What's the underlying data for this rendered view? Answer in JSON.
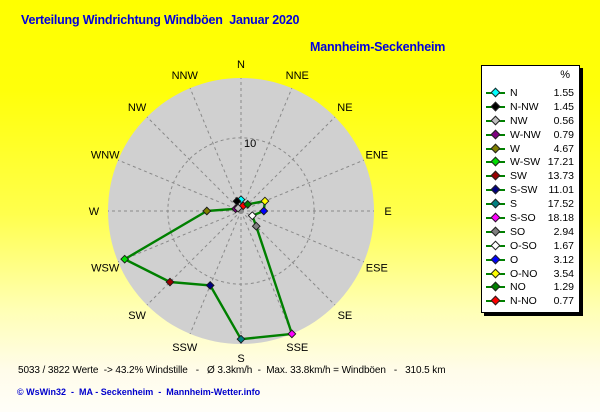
{
  "header": {
    "title": "Verteilung Windrichtung Windböen  Januar 2020",
    "subtitle": "Mannheim-Seckenheim"
  },
  "chart_data": {
    "type": "line",
    "subtype": "wind-rose-polar",
    "title": "Verteilung Windrichtung Windböen  Januar 2020",
    "subtitle": "Mannheim-Seckenheim",
    "unit": "%",
    "grid": "dashed",
    "outer_radius_value": 18.18,
    "radial_gridline_values": [
      10
    ],
    "radial_gridline_labels": [
      "10"
    ],
    "compass_labels": [
      "N",
      "NNE",
      "NE",
      "ENE",
      "E",
      "ESE",
      "SE",
      "SSE",
      "S",
      "SSW",
      "SW",
      "WSW",
      "W",
      "WNW",
      "NW",
      "NNW"
    ],
    "series": [
      {
        "name": "Windrichtung Windböen %",
        "line_color": "#008000",
        "points": [
          {
            "label": "N",
            "angle": 0,
            "value": 1.55,
            "color": "#00ffff"
          },
          {
            "label": "N-NW",
            "angle": 337.5,
            "value": 1.45,
            "color": "#000000"
          },
          {
            "label": "NW",
            "angle": 315,
            "value": 0.56,
            "color": "#c0c0c0"
          },
          {
            "label": "W-NW",
            "angle": 292.5,
            "value": 0.79,
            "color": "#800080"
          },
          {
            "label": "W",
            "angle": 270,
            "value": 4.67,
            "color": "#808000"
          },
          {
            "label": "W-SW",
            "angle": 247.5,
            "value": 17.21,
            "color": "#00dd00"
          },
          {
            "label": "SW",
            "angle": 225,
            "value": 13.73,
            "color": "#990000"
          },
          {
            "label": "S-SW",
            "angle": 202.5,
            "value": 11.01,
            "color": "#000080"
          },
          {
            "label": "S",
            "angle": 180,
            "value": 17.52,
            "color": "#008080"
          },
          {
            "label": "S-SO",
            "angle": 157.5,
            "value": 18.18,
            "color": "#ff00ff"
          },
          {
            "label": "SO",
            "angle": 135,
            "value": 2.94,
            "color": "#808080"
          },
          {
            "label": "O-SO",
            "angle": 112.5,
            "value": 1.67,
            "color": "#ffffff"
          },
          {
            "label": "O",
            "angle": 90,
            "value": 3.12,
            "color": "#0000ff"
          },
          {
            "label": "O-NO",
            "angle": 67.5,
            "value": 3.54,
            "color": "#ffff00"
          },
          {
            "label": "NO",
            "angle": 45,
            "value": 1.29,
            "color": "#008000"
          },
          {
            "label": "N-NO",
            "angle": 22.5,
            "value": 0.77,
            "color": "#ff0000"
          }
        ]
      }
    ],
    "legend_position": "right",
    "colors": {
      "background_top": "#ffff00",
      "background_bottom": "#ffffff",
      "disc": "#d0d0d0",
      "gridline": "#8a8a8a",
      "line": "#008000",
      "title_text": "#0000de",
      "footer_text": "#0000cc"
    }
  },
  "legend": {
    "header": "%"
  },
  "stats_line": "5033 / 3822 Werte  -> 43.2% Windstille   -   Ø 3.3km/h  -  Max. 33.8km/h = Windböen   -   310.5 km",
  "footer": "© WsWin32  -  MA - Seckenheim  -  Mannheim-Wetter.info"
}
